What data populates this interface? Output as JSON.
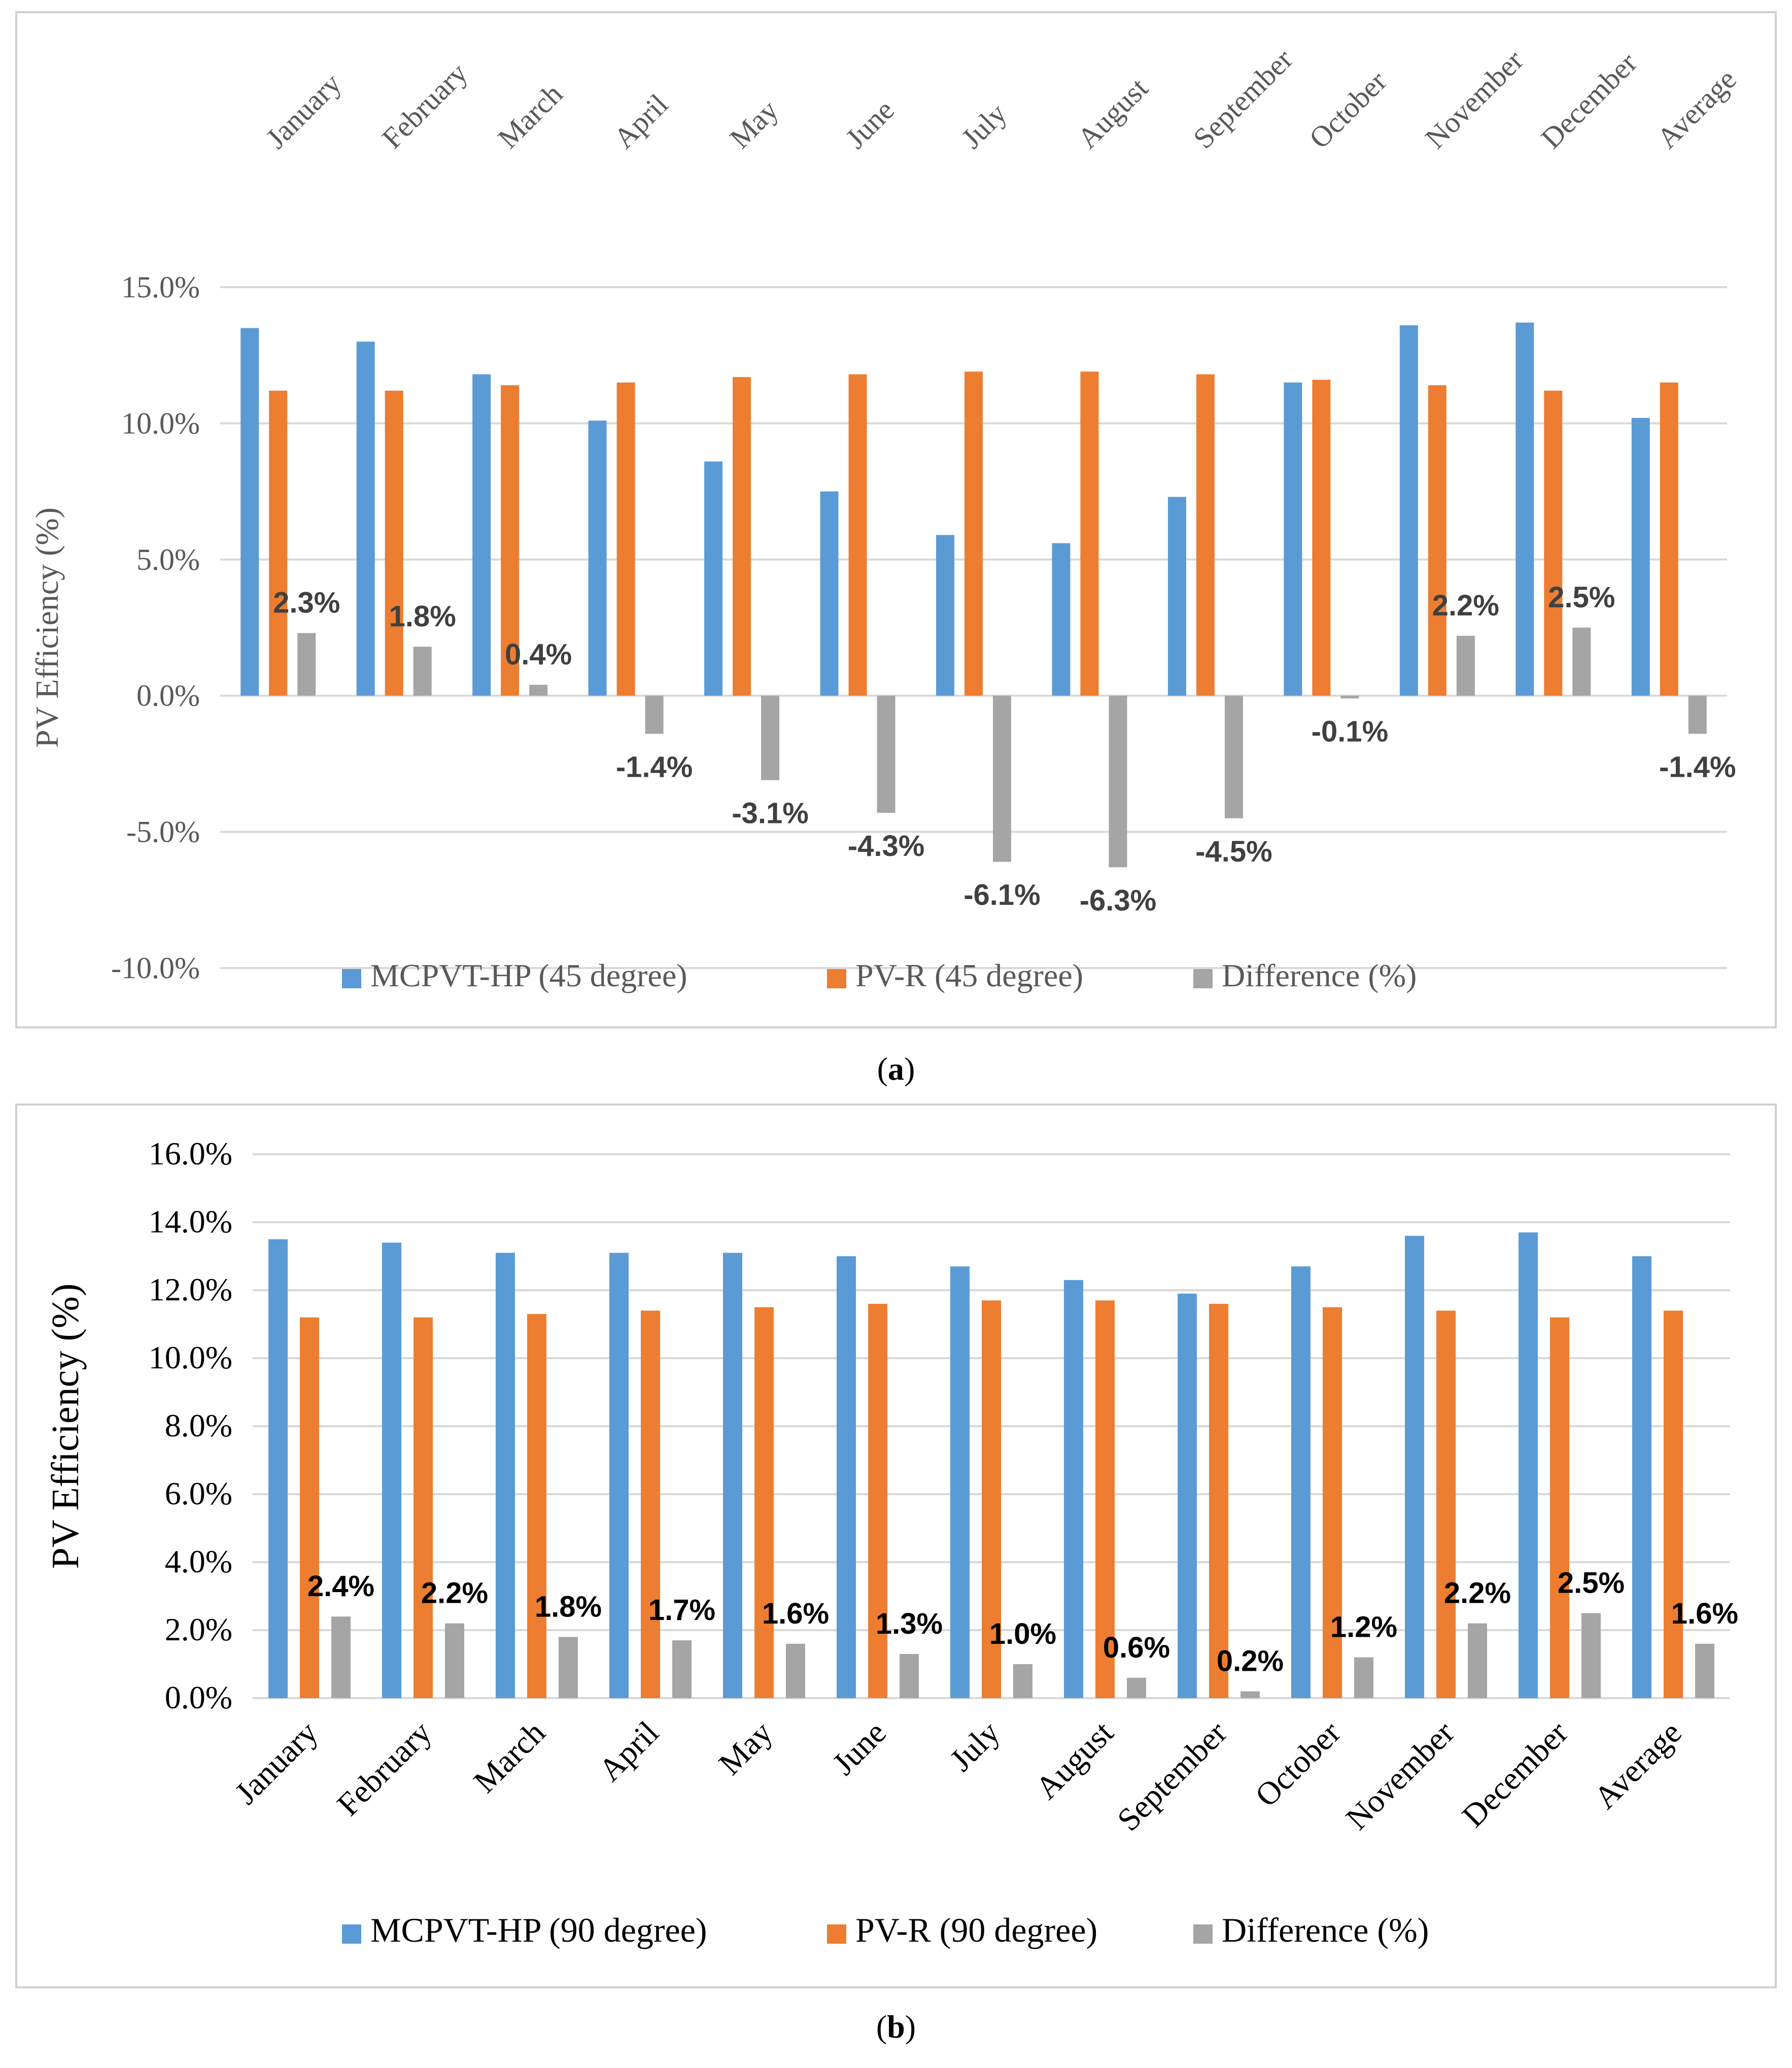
{
  "colors": {
    "mcpvt": "#5b9bd5",
    "pvr": "#ed7d31",
    "diff": "#a5a5a5",
    "grid": "#d9d9d9"
  },
  "chart_data": [
    {
      "type": "bar",
      "panel": "a",
      "caption": "(a)",
      "caption_letter": "a",
      "ylabel": "PV Efficiency (%)",
      "xlabel": "",
      "ylim": [
        -10,
        15
      ],
      "ytick_values": [
        15,
        10,
        5,
        0,
        -5,
        -10
      ],
      "ytick_labels": [
        "15.0%",
        "10.0%",
        "5.0%",
        "0.0%",
        "-5.0%",
        "-10.0%"
      ],
      "categories": [
        "January",
        "February",
        "March",
        "April",
        "May",
        "June",
        "July",
        "August",
        "September",
        "October",
        "November",
        "December",
        "Average"
      ],
      "category_position": "top",
      "legend_position": "bottom",
      "series": [
        {
          "name": "MCPVT-HP (45 degree)",
          "color": "#5b9bd5",
          "values": [
            13.5,
            13.0,
            11.8,
            10.1,
            8.6,
            7.5,
            5.9,
            5.6,
            7.3,
            11.5,
            13.6,
            13.7,
            10.2
          ]
        },
        {
          "name": "PV-R (45 degree)",
          "color": "#ed7d31",
          "values": [
            11.2,
            11.2,
            11.4,
            11.5,
            11.7,
            11.8,
            11.9,
            11.9,
            11.8,
            11.6,
            11.4,
            11.2,
            11.5
          ]
        },
        {
          "name": "Difference (%)",
          "color": "#a5a5a5",
          "values": [
            2.3,
            1.8,
            0.4,
            -1.4,
            -3.1,
            -4.3,
            -6.1,
            -6.3,
            -4.5,
            -0.1,
            2.2,
            2.5,
            -1.4
          ],
          "labels": [
            "2.3%",
            "1.8%",
            "0.4%",
            "-1.4%",
            "-3.1%",
            "-4.3%",
            "-6.1%",
            "-6.3%",
            "-4.5%",
            "-0.1%",
            "2.2%",
            "2.5%",
            "-1.4%"
          ]
        }
      ]
    },
    {
      "type": "bar",
      "panel": "b",
      "caption": "(b)",
      "caption_letter": "b",
      "ylabel": "PV Efficiency (%)",
      "xlabel": "",
      "ylim": [
        0,
        16
      ],
      "ytick_values": [
        16,
        14,
        12,
        10,
        8,
        6,
        4,
        2,
        0
      ],
      "ytick_labels": [
        "16.0%",
        "14.0%",
        "12.0%",
        "10.0%",
        "8.0%",
        "6.0%",
        "4.0%",
        "2.0%",
        "0.0%"
      ],
      "categories": [
        "January",
        "February",
        "March",
        "April",
        "May",
        "June",
        "July",
        "August",
        "September",
        "October",
        "November",
        "December",
        "Average"
      ],
      "category_position": "bottom",
      "legend_position": "bottom",
      "series": [
        {
          "name": "MCPVT-HP (90 degree)",
          "color": "#5b9bd5",
          "values": [
            13.5,
            13.4,
            13.1,
            13.1,
            13.1,
            13.0,
            12.7,
            12.3,
            11.9,
            12.7,
            13.6,
            13.7,
            13.0
          ]
        },
        {
          "name": "PV-R (90 degree)",
          "color": "#ed7d31",
          "values": [
            11.2,
            11.2,
            11.3,
            11.4,
            11.5,
            11.6,
            11.7,
            11.7,
            11.6,
            11.5,
            11.4,
            11.2,
            11.4
          ]
        },
        {
          "name": "Difference (%)",
          "color": "#a5a5a5",
          "values": [
            2.4,
            2.2,
            1.8,
            1.7,
            1.6,
            1.3,
            1.0,
            0.6,
            0.2,
            1.2,
            2.2,
            2.5,
            1.6
          ],
          "labels": [
            "2.4%",
            "2.2%",
            "1.8%",
            "1.7%",
            "1.6%",
            "1.3%",
            "1.0%",
            "0.6%",
            "0.2%",
            "1.2%",
            "2.2%",
            "2.5%",
            "1.6%"
          ]
        }
      ]
    }
  ]
}
